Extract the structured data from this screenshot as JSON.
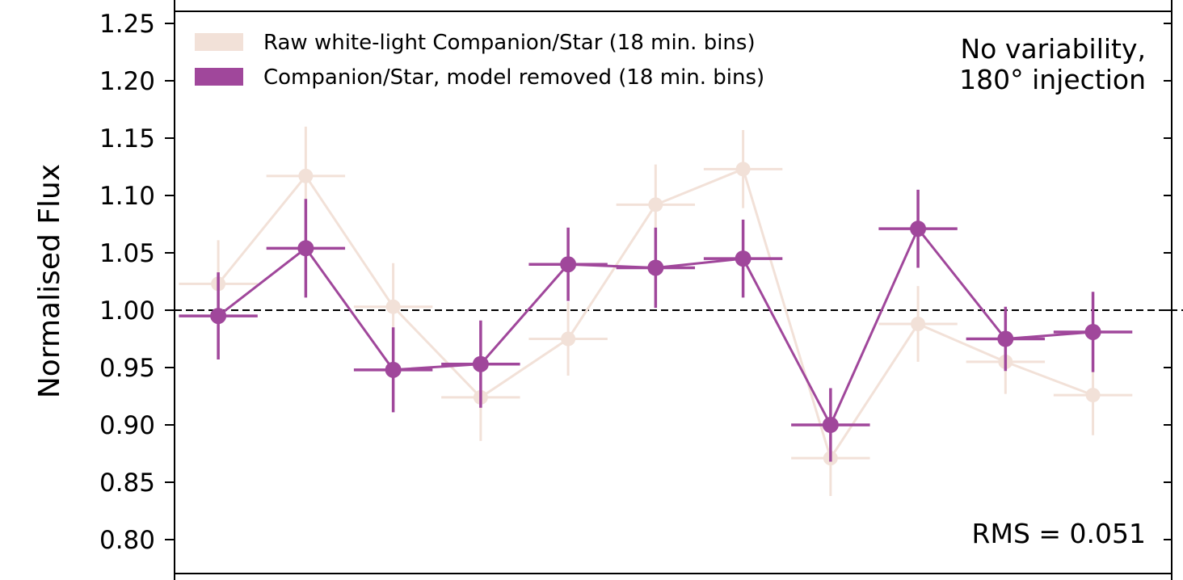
{
  "chart_data": {
    "type": "scatter",
    "ylabel": "Normalised Flux",
    "ylim": [
      0.8,
      1.25
    ],
    "yticks": [
      "0.80",
      "0.85",
      "0.90",
      "0.95",
      "1.00",
      "1.05",
      "1.10",
      "1.15",
      "1.20",
      "1.25"
    ],
    "reference_line": 1.0,
    "legend": {
      "placement": "top-left",
      "entries": [
        "Raw white-light Companion/Star (18 min. bins)",
        "Companion/Star, model removed (18 min. bins)"
      ]
    },
    "annotations": {
      "top_right_line1": "No variability,",
      "top_right_line2": "180° injection",
      "bottom_right": "RMS = 0.051"
    },
    "series": [
      {
        "name": "Raw white-light Companion/Star (18 min. bins)",
        "color": "#F2E1D8",
        "points": [
          {
            "x": 0.5,
            "y": 1.023,
            "yerr": 0.038
          },
          {
            "x": 1.5,
            "y": 1.117,
            "yerr": 0.043
          },
          {
            "x": 2.5,
            "y": 1.003,
            "yerr": 0.038
          },
          {
            "x": 3.5,
            "y": 0.924,
            "yerr": 0.038
          },
          {
            "x": 4.5,
            "y": 0.975,
            "yerr": 0.032
          },
          {
            "x": 5.5,
            "y": 1.092,
            "yerr": 0.035
          },
          {
            "x": 6.5,
            "y": 1.123,
            "yerr": 0.034
          },
          {
            "x": 7.5,
            "y": 0.871,
            "yerr": 0.033
          },
          {
            "x": 8.5,
            "y": 0.988,
            "yerr": 0.033
          },
          {
            "x": 9.5,
            "y": 0.955,
            "yerr": 0.028
          },
          {
            "x": 10.5,
            "y": 0.926,
            "yerr": 0.035
          }
        ]
      },
      {
        "name": "Companion/Star, model removed (18 min. bins)",
        "color": "#A0479B",
        "points": [
          {
            "x": 0.5,
            "y": 0.995,
            "yerr": 0.038
          },
          {
            "x": 1.5,
            "y": 1.054,
            "yerr": 0.043
          },
          {
            "x": 2.5,
            "y": 0.948,
            "yerr": 0.037
          },
          {
            "x": 3.5,
            "y": 0.953,
            "yerr": 0.038
          },
          {
            "x": 4.5,
            "y": 1.04,
            "yerr": 0.032
          },
          {
            "x": 5.5,
            "y": 1.037,
            "yerr": 0.035
          },
          {
            "x": 6.5,
            "y": 1.045,
            "yerr": 0.034
          },
          {
            "x": 7.5,
            "y": 0.9,
            "yerr": 0.032
          },
          {
            "x": 8.5,
            "y": 1.071,
            "yerr": 0.034
          },
          {
            "x": 9.5,
            "y": 0.975,
            "yerr": 0.028
          },
          {
            "x": 10.5,
            "y": 0.981,
            "yerr": 0.035
          }
        ]
      }
    ]
  }
}
